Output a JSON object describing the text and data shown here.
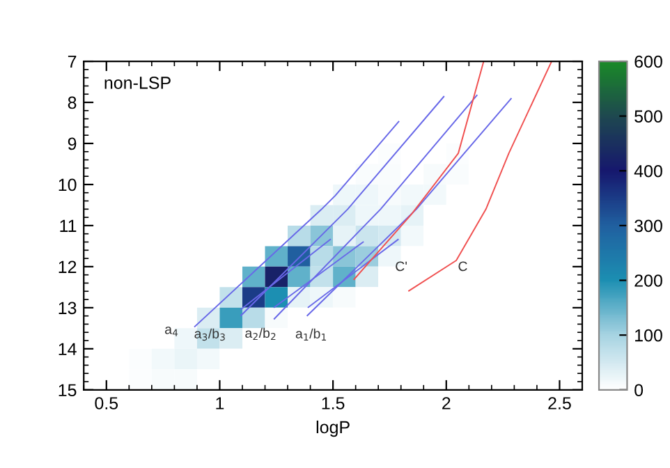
{
  "chart_data": {
    "type": "heatmap",
    "xlabel": "logP",
    "xlim": [
      0.4,
      2.6
    ],
    "ylim": [
      15,
      7
    ],
    "xticks": [
      0.5,
      1,
      1.5,
      2,
      2.5
    ],
    "yticks": [
      7,
      8,
      9,
      10,
      11,
      12,
      13,
      14,
      15
    ],
    "clim": [
      0,
      600
    ],
    "cticks": [
      0,
      100,
      200,
      300,
      400,
      500,
      600
    ],
    "cells": [
      [
        0,
        0,
        0,
        0,
        0,
        0,
        0,
        0,
        0,
        0,
        0,
        0,
        0,
        0,
        0,
        0,
        0,
        0,
        0,
        0,
        0,
        0
      ],
      [
        0,
        0,
        0,
        0,
        0,
        0,
        0,
        0,
        0,
        0,
        0,
        0,
        0,
        0,
        0,
        0,
        0,
        0,
        0,
        0,
        0,
        0
      ],
      [
        0,
        0,
        0,
        0,
        0,
        0,
        0,
        0,
        0,
        0,
        0,
        0,
        0,
        0,
        0,
        0,
        0,
        0,
        0,
        0,
        0,
        0
      ],
      [
        0,
        0,
        0,
        0,
        0,
        0,
        0,
        0,
        0,
        0,
        0,
        0,
        0,
        0,
        0,
        0,
        0,
        0,
        0,
        0,
        0,
        0
      ],
      [
        0,
        0,
        0,
        0,
        0,
        0,
        0,
        0,
        0,
        0,
        0,
        0,
        0,
        5,
        0,
        0,
        5,
        0,
        0,
        0,
        0,
        0
      ],
      [
        0,
        0,
        0,
        0,
        0,
        0,
        0,
        0,
        0,
        0,
        0,
        0,
        8,
        8,
        0,
        10,
        8,
        0,
        0,
        0,
        0,
        0
      ],
      [
        0,
        0,
        0,
        0,
        0,
        0,
        0,
        0,
        0,
        0,
        0,
        20,
        20,
        10,
        15,
        15,
        0,
        0,
        0,
        0,
        0,
        0
      ],
      [
        0,
        0,
        0,
        0,
        0,
        0,
        0,
        0,
        0,
        0,
        40,
        40,
        20,
        20,
        30,
        0,
        0,
        0,
        0,
        0,
        0,
        0
      ],
      [
        0,
        0,
        0,
        0,
        0,
        0,
        0,
        0,
        0,
        80,
        120,
        30,
        60,
        50,
        15,
        0,
        0,
        0,
        0,
        0,
        0,
        0
      ],
      [
        0,
        0,
        0,
        0,
        0,
        0,
        0,
        0,
        150,
        300,
        80,
        120,
        110,
        20,
        0,
        0,
        0,
        0,
        0,
        0,
        0,
        0
      ],
      [
        0,
        0,
        0,
        0,
        0,
        0,
        0,
        150,
        420,
        150,
        70,
        150,
        40,
        0,
        0,
        0,
        0,
        0,
        0,
        0,
        0,
        0
      ],
      [
        0,
        0,
        0,
        0,
        0,
        0,
        70,
        350,
        200,
        30,
        20,
        10,
        0,
        0,
        0,
        0,
        0,
        0,
        0,
        0,
        0,
        0
      ],
      [
        0,
        0,
        0,
        0,
        0,
        40,
        180,
        80,
        10,
        0,
        0,
        0,
        0,
        0,
        0,
        0,
        0,
        0,
        0,
        0,
        0,
        0
      ],
      [
        0,
        0,
        0,
        0,
        20,
        70,
        40,
        0,
        0,
        0,
        0,
        0,
        0,
        0,
        0,
        0,
        0,
        0,
        0,
        0,
        0,
        0
      ],
      [
        0,
        0,
        5,
        15,
        25,
        15,
        0,
        0,
        0,
        0,
        0,
        0,
        0,
        0,
        0,
        0,
        0,
        0,
        0,
        0,
        0,
        0
      ],
      [
        0,
        0,
        5,
        10,
        10,
        0,
        0,
        0,
        0,
        0,
        0,
        0,
        0,
        0,
        0,
        0,
        0,
        0,
        0,
        0,
        0,
        0
      ]
    ],
    "series": [
      {
        "type": "line",
        "color": "#6868e8",
        "x": [
          0.89,
          1.45,
          1.51,
          1.79
        ],
        "values": [
          13.46,
          10.6,
          10.27,
          8.47
        ]
      },
      {
        "type": "line",
        "color": "#6868e8",
        "x": [
          1.094,
          1.565,
          1.989
        ],
        "values": [
          13.19,
          10.6,
          7.86
        ]
      },
      {
        "type": "line",
        "color": "#6868e8",
        "x": [
          1.094,
          1.488
        ],
        "values": [
          13.04,
          11.34
        ]
      },
      {
        "type": "line",
        "color": "#6868e8",
        "x": [
          1.241,
          1.71,
          2.135
        ],
        "values": [
          13.27,
          10.6,
          7.83
        ]
      },
      {
        "type": "line",
        "color": "#6868e8",
        "x": [
          1.241,
          1.633
        ],
        "values": [
          12.99,
          11.4
        ]
      },
      {
        "type": "line",
        "color": "#6868e8",
        "x": [
          1.387,
          1.868,
          2.286
        ],
        "values": [
          13.19,
          10.6,
          7.91
        ]
      },
      {
        "type": "line",
        "color": "#6868e8",
        "x": [
          1.391,
          1.787
        ],
        "values": [
          12.99,
          11.34
        ]
      },
      {
        "type": "line",
        "color": "#f05050",
        "x": [
          1.593,
          1.847,
          2.053,
          2.165
        ],
        "values": [
          12.31,
          10.72,
          9.24,
          7.0
        ]
      },
      {
        "type": "line",
        "color": "#f05050",
        "x": [
          1.835,
          2.044,
          2.175,
          2.276,
          2.465
        ],
        "values": [
          12.59,
          11.85,
          10.6,
          9.24,
          7.0
        ]
      }
    ],
    "annotations": [
      "non-LSP",
      {
        "text": "a$_{4}$",
        "x": 0.89,
        "y": 13.46
      },
      {
        "text": "a$_{3}$/b$_{3}$",
        "x": 1.094,
        "y": 13.19
      },
      {
        "text": "a$_{2}$/b$_{2}$",
        "x": 1.241,
        "y": 13.27
      },
      {
        "text": "a$_{1}$/b$_{1}$",
        "x": 1.387,
        "y": 13.19
      },
      {
        "text": "C'",
        "x": 1.639,
        "y": 12.02
      },
      {
        "text": "C",
        "x": 1.996,
        "y": 12.02
      }
    ],
    "marker": "none",
    "line_style": "solid",
    "grid": false
  }
}
